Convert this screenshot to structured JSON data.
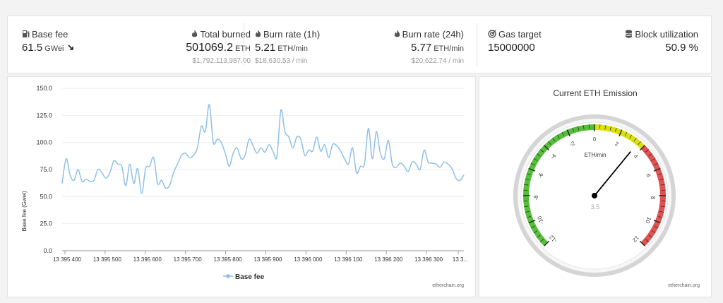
{
  "stats": {
    "base_fee": {
      "label": "Base fee",
      "value": "61.5",
      "unit": "GWei",
      "icon": "gas-pump-icon",
      "trend_icon": "arrow-down-right-icon"
    },
    "total_burned": {
      "label": "Total burned",
      "value": "501069.2",
      "unit": "ETH",
      "sub": "$1,792,113,987.00",
      "icon": "flame-icon"
    },
    "burn_rate_1h": {
      "label": "Burn rate (1h)",
      "value": "5.21",
      "unit": "ETH/min",
      "sub": "$18,630.53 / min",
      "icon": "flame-icon"
    },
    "burn_rate_24h": {
      "label": "Burn rate (24h)",
      "value": "5.77",
      "unit": "ETH/min",
      "sub": "$20,622.74 / min",
      "icon": "flame-icon"
    },
    "gas_target": {
      "label": "Gas target",
      "value": "15000000",
      "icon": "target-icon"
    },
    "block_utilization": {
      "label": "Block utilization",
      "value": "50.9 %",
      "icon": "database-icon"
    }
  },
  "chart_data": [
    {
      "type": "line",
      "title": "",
      "xlabel": "",
      "ylabel": "Base fee (Gwei)",
      "ylim": [
        0,
        150
      ],
      "yticks": [
        "0.0",
        "25.0",
        "50.0",
        "75.0",
        "100.0",
        "125.0",
        "150.0"
      ],
      "xticks": [
        "13 395 400",
        "13 395 500",
        "13 395 600",
        "13 395 700",
        "13 395 800",
        "13 395 900",
        "13 396 000",
        "13 396 100",
        "13 396 200",
        "13 396 300",
        "13 3..."
      ],
      "xlim": [
        13395393,
        13396393
      ],
      "grid": true,
      "legend": "bottom",
      "color": "#8fbfe8",
      "series": [
        {
          "name": "Base fee",
          "values": [
            62,
            85,
            70,
            65,
            75,
            64,
            66,
            64,
            65,
            75,
            72,
            67,
            72,
            83,
            80,
            78,
            60,
            80,
            62,
            76,
            53,
            76,
            78,
            86,
            62,
            65,
            58,
            60,
            72,
            80,
            88,
            90,
            86,
            88,
            95,
            115,
            110,
            135,
            100,
            103,
            100,
            90,
            78,
            90,
            95,
            85,
            88,
            103,
            97,
            90,
            95,
            91,
            98,
            92,
            87,
            130,
            110,
            105,
            95,
            105,
            103,
            88,
            93,
            92,
            105,
            92,
            98,
            86,
            98,
            97,
            92,
            85,
            80,
            95,
            72,
            78,
            80,
            113,
            85,
            110,
            90,
            85,
            102,
            80,
            77,
            81,
            78,
            73,
            82,
            80,
            75,
            93,
            82,
            81,
            80,
            77,
            82,
            80,
            76,
            67,
            65,
            70
          ]
        }
      ],
      "credit": "etherchain.org"
    },
    {
      "type": "gauge",
      "title": "Current ETH Emission",
      "unit": "ETH/min",
      "min": -12,
      "max": 12,
      "value": 3.5,
      "value_label": "3.5",
      "tick_labels": [
        "-12",
        "-10",
        "-8",
        "-6",
        "-4",
        "-2",
        "0",
        "2",
        "4",
        "6",
        "8",
        "10",
        "12"
      ],
      "bands": [
        {
          "from": -12,
          "to": 0,
          "color": "#55bf3b"
        },
        {
          "from": 0,
          "to": 4,
          "color": "#dddf0d"
        },
        {
          "from": 4,
          "to": 12,
          "color": "#df5353"
        }
      ],
      "credit": "etherchain.org"
    }
  ]
}
